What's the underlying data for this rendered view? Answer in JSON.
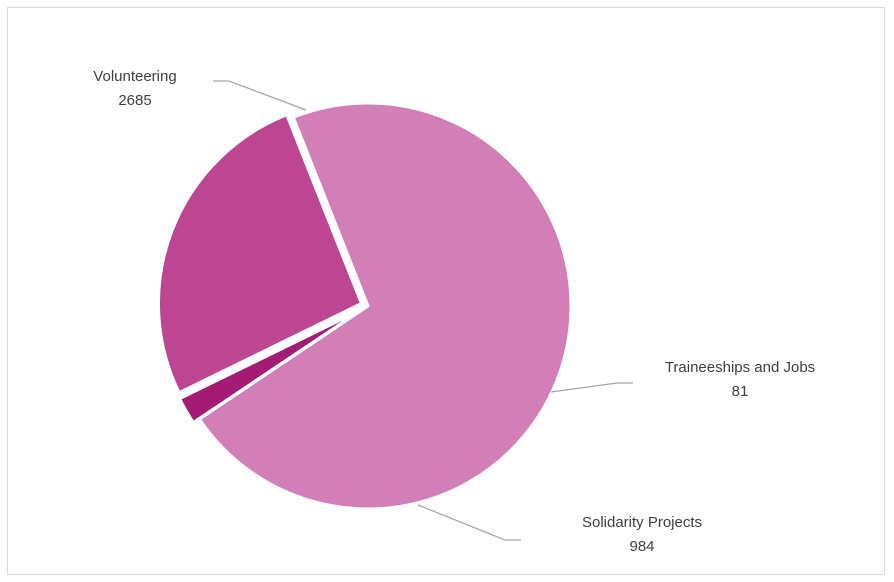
{
  "chart_data": {
    "type": "pie",
    "title": "",
    "slices": [
      {
        "label": "Volunteering",
        "value": 2685,
        "color": "#d17fb6"
      },
      {
        "label": "Traineeships  and Jobs",
        "value": 81,
        "color": "#a31b74"
      },
      {
        "label": "Solidarity  Projects",
        "value": 984,
        "color": "#bc4692"
      }
    ],
    "leader_line_color": "#a6a6a6",
    "legend": "none"
  }
}
